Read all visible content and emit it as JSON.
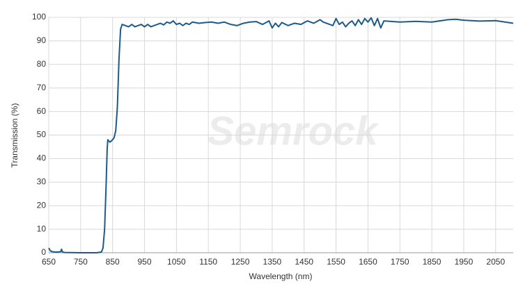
{
  "chart_data": {
    "type": "line",
    "x_label": "Wavelength (nm)",
    "y_label": "Transmission (%)",
    "watermark": "Semrock",
    "x": [
      650,
      655,
      660,
      670,
      680,
      688,
      690,
      693,
      700,
      750,
      800,
      815,
      820,
      825,
      830,
      833,
      835,
      838,
      842,
      846,
      850,
      855,
      860,
      865,
      870,
      875,
      880,
      890,
      900,
      910,
      920,
      930,
      940,
      950,
      960,
      970,
      980,
      990,
      1000,
      1010,
      1020,
      1030,
      1040,
      1050,
      1060,
      1070,
      1080,
      1090,
      1100,
      1120,
      1140,
      1160,
      1180,
      1200,
      1220,
      1240,
      1260,
      1280,
      1300,
      1320,
      1340,
      1350,
      1360,
      1370,
      1380,
      1400,
      1420,
      1440,
      1460,
      1480,
      1500,
      1510,
      1520,
      1540,
      1550,
      1560,
      1570,
      1580,
      1590,
      1600,
      1610,
      1620,
      1630,
      1640,
      1650,
      1660,
      1670,
      1680,
      1690,
      1700,
      1750,
      1800,
      1850,
      1900,
      1925,
      1950,
      2000,
      2050,
      2105
    ],
    "series": [
      {
        "name": "Transmission",
        "color": "#1b5a8a",
        "values": [
          2,
          0.8,
          0.5,
          0.3,
          0.3,
          0.5,
          1.5,
          0.3,
          0.1,
          0,
          0,
          0.3,
          2,
          10,
          30,
          44,
          48,
          47.5,
          47,
          47.5,
          48,
          49,
          52,
          62,
          82,
          95,
          97,
          96.5,
          96,
          97,
          96,
          96.5,
          97,
          96,
          97,
          96,
          96.5,
          97,
          97.5,
          96.8,
          98,
          97.5,
          98.5,
          97,
          97.5,
          96.5,
          97.5,
          97,
          98,
          97.5,
          97.8,
          98,
          97.5,
          98,
          97,
          96.5,
          97.5,
          98,
          98.2,
          97,
          98.5,
          95.5,
          97.5,
          96,
          97.8,
          96.5,
          97.5,
          97,
          98.5,
          97.5,
          99,
          98,
          97.5,
          96.5,
          99.5,
          97,
          98,
          96,
          97.5,
          98.5,
          96.5,
          99,
          97,
          99.5,
          98,
          99.8,
          96.5,
          99.5,
          95.5,
          98.5,
          98,
          98.3,
          98,
          99,
          99.2,
          98.8,
          98.4,
          98.6,
          97.5
        ]
      }
    ],
    "xlim": [
      650,
      2105
    ],
    "ylim": [
      0,
      100
    ],
    "xticks": [
      650,
      750,
      850,
      950,
      1050,
      1150,
      1250,
      1350,
      1450,
      1550,
      1650,
      1750,
      1850,
      1950,
      2050
    ],
    "yticks": [
      0,
      10,
      20,
      30,
      40,
      50,
      60,
      70,
      80,
      90,
      100
    ],
    "grid": true
  }
}
